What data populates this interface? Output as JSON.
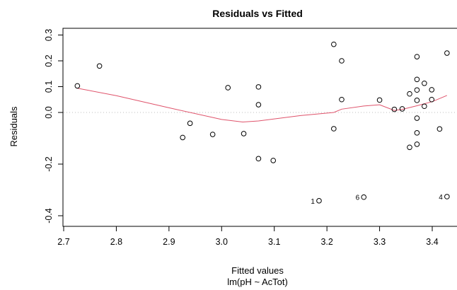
{
  "chart_data": {
    "type": "scatter",
    "title": "Residuals vs Fitted",
    "xlabel": "Fitted values",
    "subtitle": "lm(pH ~ AcTot)",
    "ylabel": "Residuals",
    "xlim": [
      2.7,
      3.45
    ],
    "ylim": [
      -0.42,
      0.33
    ],
    "x_ticks": [
      "2.7",
      "2.8",
      "2.9",
      "3.0",
      "3.1",
      "3.2",
      "3.3",
      "3.4"
    ],
    "y_ticks": [
      "-0.4",
      "-0.2",
      "0.0",
      "0.1",
      "0.2",
      "0.3"
    ],
    "reference_line_y": 0,
    "colors": {
      "points": "#000000",
      "smooth": "#DF536B",
      "reference": "#bebebe"
    },
    "points": [
      {
        "x": 2.726,
        "y": 0.103
      },
      {
        "x": 2.768,
        "y": 0.18
      },
      {
        "x": 2.926,
        "y": -0.097
      },
      {
        "x": 2.94,
        "y": -0.042
      },
      {
        "x": 2.983,
        "y": -0.085
      },
      {
        "x": 3.012,
        "y": 0.096
      },
      {
        "x": 3.042,
        "y": -0.082
      },
      {
        "x": 3.07,
        "y": 0.099
      },
      {
        "x": 3.07,
        "y": 0.03
      },
      {
        "x": 3.07,
        "y": -0.179
      },
      {
        "x": 3.098,
        "y": -0.186
      },
      {
        "x": 3.185,
        "y": -0.342
      },
      {
        "x": 3.213,
        "y": 0.264
      },
      {
        "x": 3.213,
        "y": -0.063
      },
      {
        "x": 3.228,
        "y": 0.2
      },
      {
        "x": 3.228,
        "y": 0.05
      },
      {
        "x": 3.27,
        "y": -0.328
      },
      {
        "x": 3.3,
        "y": 0.048
      },
      {
        "x": 3.328,
        "y": 0.012
      },
      {
        "x": 3.343,
        "y": 0.014
      },
      {
        "x": 3.357,
        "y": 0.072
      },
      {
        "x": 3.357,
        "y": -0.135
      },
      {
        "x": 3.371,
        "y": 0.216
      },
      {
        "x": 3.371,
        "y": 0.128
      },
      {
        "x": 3.371,
        "y": 0.087
      },
      {
        "x": 3.371,
        "y": 0.047
      },
      {
        "x": 3.371,
        "y": -0.022
      },
      {
        "x": 3.371,
        "y": -0.079
      },
      {
        "x": 3.371,
        "y": -0.123
      },
      {
        "x": 3.385,
        "y": 0.113
      },
      {
        "x": 3.385,
        "y": 0.024
      },
      {
        "x": 3.399,
        "y": 0.088
      },
      {
        "x": 3.399,
        "y": 0.05
      },
      {
        "x": 3.414,
        "y": -0.064
      },
      {
        "x": 3.428,
        "y": 0.23
      },
      {
        "x": 3.428,
        "y": -0.326
      }
    ],
    "smooth_line": [
      {
        "x": 2.726,
        "y": 0.094
      },
      {
        "x": 2.8,
        "y": 0.065
      },
      {
        "x": 2.9,
        "y": 0.018
      },
      {
        "x": 3.0,
        "y": -0.027
      },
      {
        "x": 3.04,
        "y": -0.037
      },
      {
        "x": 3.07,
        "y": -0.033
      },
      {
        "x": 3.1,
        "y": -0.025
      },
      {
        "x": 3.15,
        "y": -0.012
      },
      {
        "x": 3.213,
        "y": 0.0
      },
      {
        "x": 3.228,
        "y": 0.013
      },
      {
        "x": 3.27,
        "y": 0.025
      },
      {
        "x": 3.3,
        "y": 0.03
      },
      {
        "x": 3.328,
        "y": 0.008
      },
      {
        "x": 3.343,
        "y": 0.012
      },
      {
        "x": 3.371,
        "y": 0.026
      },
      {
        "x": 3.4,
        "y": 0.042
      },
      {
        "x": 3.428,
        "y": 0.066
      }
    ],
    "annotations": [
      {
        "text": "1",
        "x": 3.185,
        "y": -0.342
      },
      {
        "text": "6",
        "x": 3.27,
        "y": -0.328
      },
      {
        "text": "4",
        "x": 3.428,
        "y": -0.326
      }
    ]
  }
}
